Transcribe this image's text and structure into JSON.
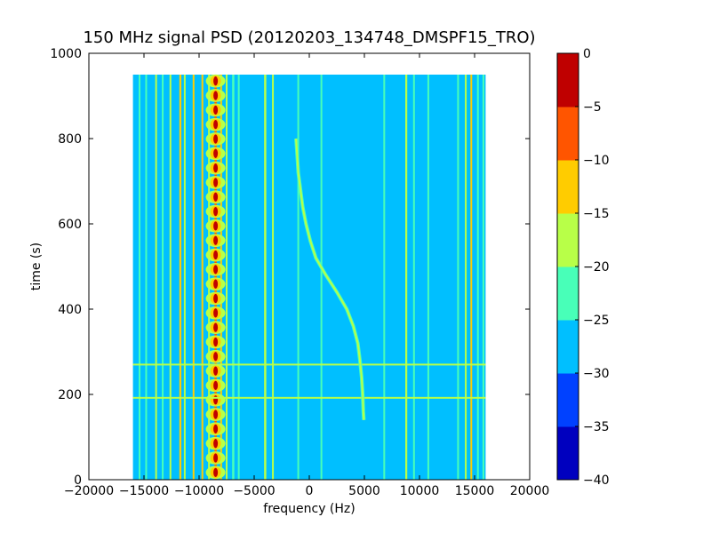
{
  "chart_data": {
    "type": "heatmap",
    "title": "150 MHz signal PSD (20120203_134748_DMSPF15_TRO)",
    "xlabel": "frequency (Hz)",
    "ylabel": "time (s)",
    "xlim": [
      -20000,
      20000
    ],
    "ylim": [
      0,
      1000
    ],
    "x_ticks": [
      -20000,
      -15000,
      -10000,
      -5000,
      0,
      5000,
      10000,
      15000,
      20000
    ],
    "x_tick_labels": [
      "−20000",
      "−15000",
      "−10000",
      "−5000",
      "0",
      "5000",
      "10000",
      "15000",
      "20000"
    ],
    "y_ticks": [
      0,
      200,
      400,
      600,
      800,
      1000
    ],
    "y_tick_labels": [
      "0",
      "200",
      "400",
      "600",
      "800",
      "1000"
    ],
    "data_extent": {
      "freq_min": -16000,
      "freq_max": 16000,
      "time_min": 0,
      "time_max": 950
    },
    "background_level": -27.5,
    "colorbar": {
      "levels": [
        -40,
        -35,
        -30,
        -25,
        -20,
        -15,
        -10,
        -5,
        0
      ],
      "tick_labels": [
        "−40",
        "−35",
        "−30",
        "−25",
        "−20",
        "−15",
        "−10",
        "−5",
        "0"
      ],
      "colors": [
        "#0000bf",
        "#0041ff",
        "#00bfff",
        "#48ffb8",
        "#b8ff48",
        "#ffcc00",
        "#ff5500",
        "#bf0000"
      ]
    },
    "vertical_lines": [
      {
        "freq": -15400,
        "level": -22.5,
        "width_hz": 150
      },
      {
        "freq": -14800,
        "level": -22.5,
        "width_hz": 150
      },
      {
        "freq": -13900,
        "level": -17.5,
        "width_hz": 150
      },
      {
        "freq": -13300,
        "level": -22.5,
        "width_hz": 150
      },
      {
        "freq": -12600,
        "level": -17.5,
        "width_hz": 150
      },
      {
        "freq": -11700,
        "level": -12.5,
        "width_hz": 180
      },
      {
        "freq": -11300,
        "level": -17.5,
        "width_hz": 150
      },
      {
        "freq": -10500,
        "level": -12.5,
        "width_hz": 150
      },
      {
        "freq": -9700,
        "level": -12.5,
        "width_hz": 150
      },
      {
        "freq": -9100,
        "level": -17.5,
        "width_hz": 150
      },
      {
        "freq": -8500,
        "level": -7.5,
        "width_hz": 200
      },
      {
        "freq": -8000,
        "level": -12.5,
        "width_hz": 150
      },
      {
        "freq": -7500,
        "level": -17.5,
        "width_hz": 150
      },
      {
        "freq": -6900,
        "level": -22.5,
        "width_hz": 200
      },
      {
        "freq": -6400,
        "level": -22.5,
        "width_hz": 150
      },
      {
        "freq": -4000,
        "level": -17.5,
        "width_hz": 200
      },
      {
        "freq": -3300,
        "level": -17.5,
        "width_hz": 150
      },
      {
        "freq": -1000,
        "level": -22.5,
        "width_hz": 150
      },
      {
        "freq": 1100,
        "level": -22.5,
        "width_hz": 150
      },
      {
        "freq": 6800,
        "level": -22.5,
        "width_hz": 150
      },
      {
        "freq": 8800,
        "level": -17.5,
        "width_hz": 180
      },
      {
        "freq": 9500,
        "level": -22.5,
        "width_hz": 150
      },
      {
        "freq": 10800,
        "level": -22.5,
        "width_hz": 150
      },
      {
        "freq": 13500,
        "level": -22.5,
        "width_hz": 150
      },
      {
        "freq": 14200,
        "level": -17.5,
        "width_hz": 150
      },
      {
        "freq": 14700,
        "level": -12.5,
        "width_hz": 150
      },
      {
        "freq": 15300,
        "level": -22.5,
        "width_hz": 150
      },
      {
        "freq": 15800,
        "level": -22.5,
        "width_hz": 150
      }
    ],
    "horizontal_lines": [
      {
        "time": 270,
        "level": -17.5
      },
      {
        "time": 192,
        "level": -17.5
      }
    ],
    "doppler_trace": {
      "level": -17.5,
      "points": [
        {
          "t": 800,
          "f": -1200
        },
        {
          "t": 760,
          "f": -1100
        },
        {
          "t": 720,
          "f": -1000
        },
        {
          "t": 680,
          "f": -800
        },
        {
          "t": 640,
          "f": -600
        },
        {
          "t": 600,
          "f": -300
        },
        {
          "t": 560,
          "f": 100
        },
        {
          "t": 520,
          "f": 600
        },
        {
          "t": 480,
          "f": 1500
        },
        {
          "t": 440,
          "f": 2500
        },
        {
          "t": 400,
          "f": 3400
        },
        {
          "t": 360,
          "f": 4000
        },
        {
          "t": 320,
          "f": 4400
        },
        {
          "t": 280,
          "f": 4600
        },
        {
          "t": 240,
          "f": 4750
        },
        {
          "t": 200,
          "f": 4850
        },
        {
          "t": 160,
          "f": 4900
        },
        {
          "t": 140,
          "f": 4950
        }
      ]
    },
    "beat_column": {
      "freq": -8500,
      "period_s": 34,
      "level": -2.5
    }
  }
}
